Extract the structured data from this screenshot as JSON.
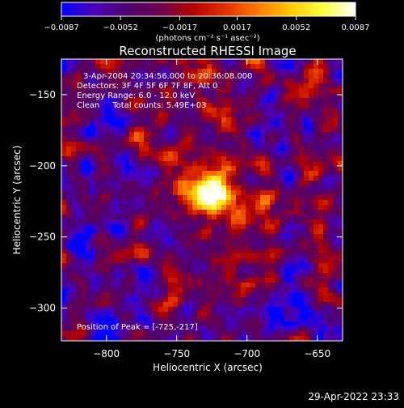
{
  "chart_data": {
    "type": "heatmap",
    "title": "Reconstructed RHESSI Image",
    "xlabel": "Heliocentric X (arcsec)",
    "ylabel": "Heliocentric Y (arcsec)",
    "xlim": [
      -832,
      -632
    ],
    "ylim": [
      -323,
      -125
    ],
    "x_ticks": [
      -800,
      -750,
      -700,
      -650
    ],
    "x_tick_labels": [
      "−800",
      "−750",
      "−700",
      "−650"
    ],
    "y_ticks": [
      -150,
      -200,
      -250,
      -300
    ],
    "y_tick_labels": [
      "−150",
      "−200",
      "−250",
      "−300"
    ],
    "colorbar": {
      "range": [
        -0.0087,
        0.0087
      ],
      "ticks": [
        -0.0087,
        -0.0052,
        -0.0017,
        0.0017,
        0.0052,
        0.0087
      ],
      "tick_labels": [
        "−0.0087",
        "−0.0052",
        "−0.0017",
        "0.0017",
        "0.0052",
        "0.0087"
      ],
      "unit_label": "(photons cm⁻² s⁻¹ asec⁻²)",
      "colormap": [
        "#0000ff",
        "#4d00b8",
        "#500070",
        "#6a0050",
        "#b40000",
        "#e03000",
        "#ff7800",
        "#ffc800",
        "#ffff40",
        "#ffffff"
      ]
    },
    "annotations": [
      "3-Apr-2004 20:34:56.000 to 20:36:08.000",
      "Detectors: 3F 4F 5F 6F 7F 8F, Att 0",
      "Energy Range: 6.0 - 12.0 keV",
      "Clean     Total counts: 5.49E+03"
    ],
    "peak_label": "Position of Peak = [-725,-217]",
    "peak_position": [
      -725,
      -217
    ],
    "total_counts": 5490,
    "energy_range_keV": [
      6.0,
      12.0
    ]
  },
  "footer": {
    "timestamp": "29-Apr-2022 23:33"
  }
}
